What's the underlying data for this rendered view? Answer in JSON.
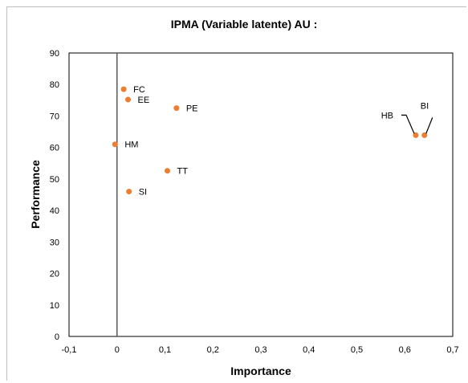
{
  "chart_data": {
    "type": "scatter",
    "title": "IPMA (Variable latente) AU :",
    "xlabel": "Importance",
    "ylabel": "Performance",
    "xlim": [
      -0.1,
      0.7
    ],
    "ylim": [
      0,
      90
    ],
    "x_ticks": [
      "-0,1",
      "0",
      "0,1",
      "0,2",
      "0,3",
      "0,4",
      "0,5",
      "0,6",
      "0,7"
    ],
    "y_ticks": [
      "0",
      "10",
      "20",
      "30",
      "40",
      "50",
      "60",
      "70",
      "80",
      "90"
    ],
    "grid": false,
    "legend": "none",
    "marker_color": "#ED7D31",
    "points": [
      {
        "label": "FC",
        "x": 0.014,
        "y": 78.5
      },
      {
        "label": "EE",
        "x": 0.023,
        "y": 75.2
      },
      {
        "label": "PE",
        "x": 0.124,
        "y": 72.5
      },
      {
        "label": "HM",
        "x": -0.004,
        "y": 61.0
      },
      {
        "label": "TT",
        "x": 0.105,
        "y": 52.6
      },
      {
        "label": "SI",
        "x": 0.025,
        "y": 46.0
      },
      {
        "label": "HB",
        "x": 0.623,
        "y": 63.9
      },
      {
        "label": "BI",
        "x": 0.641,
        "y": 63.9
      }
    ]
  }
}
